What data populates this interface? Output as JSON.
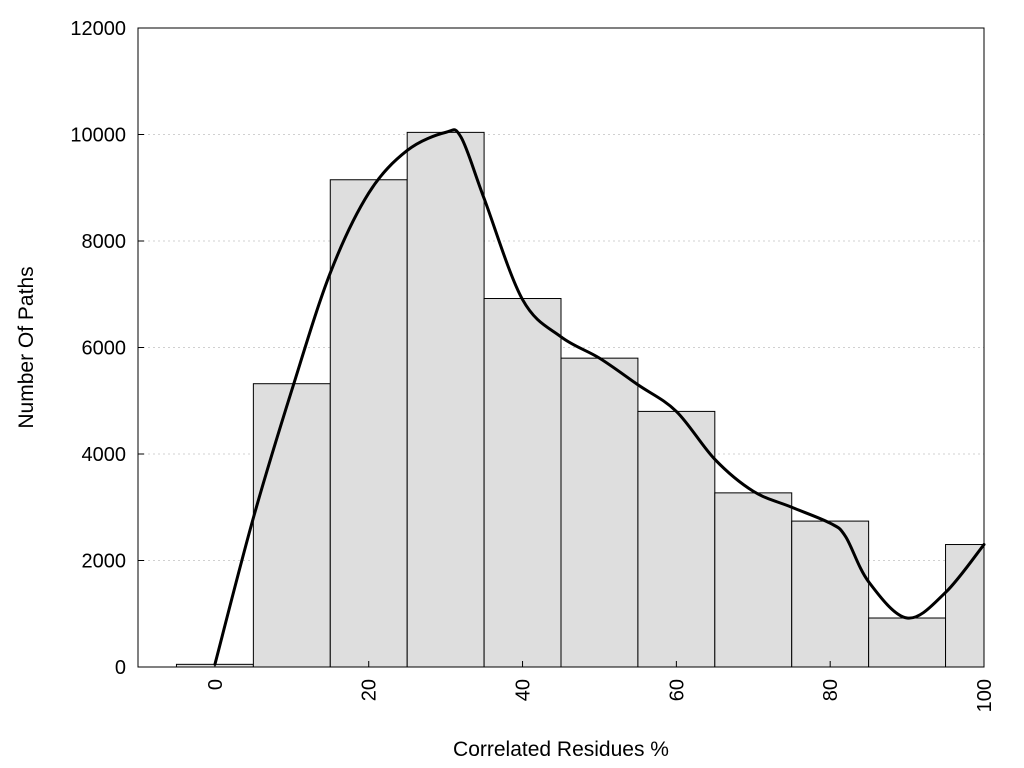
{
  "chart_data": {
    "type": "bar",
    "title": "",
    "xlabel": "Correlated Residues %",
    "ylabel": "Number Of Paths",
    "xlim": [
      -10,
      100
    ],
    "ylim": [
      0,
      12000
    ],
    "x_ticks": [
      "0",
      "20",
      "40",
      "60",
      "80",
      "100"
    ],
    "y_ticks": [
      "0",
      "2000",
      "4000",
      "6000",
      "8000",
      "10000",
      "12000"
    ],
    "bin_width": 10,
    "bins": [
      {
        "center": 0,
        "value": 50
      },
      {
        "center": 10,
        "value": 5320
      },
      {
        "center": 20,
        "value": 9150
      },
      {
        "center": 30,
        "value": 10040
      },
      {
        "center": 40,
        "value": 6920
      },
      {
        "center": 50,
        "value": 5800
      },
      {
        "center": 60,
        "value": 4800
      },
      {
        "center": 70,
        "value": 3270
      },
      {
        "center": 80,
        "value": 2740
      },
      {
        "center": 90,
        "value": 920
      },
      {
        "center": 100,
        "value": 2300
      }
    ],
    "density_curve": {
      "x": [
        0,
        5,
        10,
        15,
        20,
        25,
        30,
        32,
        35,
        40,
        45,
        50,
        55,
        60,
        65,
        70,
        75,
        80,
        82,
        85,
        90,
        95,
        100
      ],
      "y": [
        50,
        2800,
        5200,
        7400,
        8900,
        9700,
        10040,
        9950,
        8800,
        6900,
        6200,
        5800,
        5300,
        4800,
        3900,
        3300,
        3000,
        2700,
        2450,
        1600,
        920,
        1400,
        2300
      ]
    },
    "grid": "horizontal-dotted",
    "legend": "none",
    "colors": {
      "bar_fill": "#dedede",
      "bar_stroke": "#000000",
      "curve": "#000000",
      "grid": "#d0d0d0"
    }
  }
}
